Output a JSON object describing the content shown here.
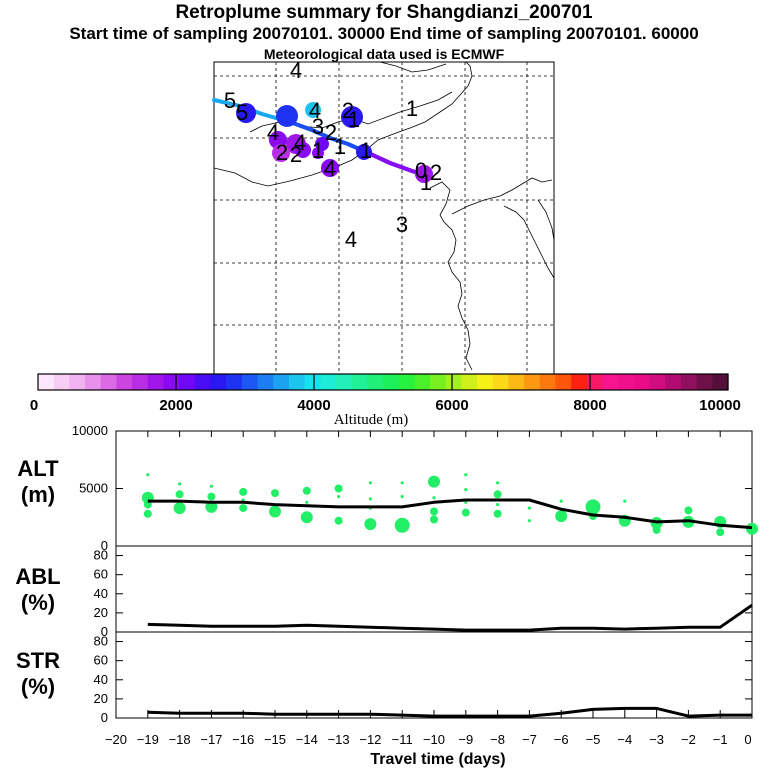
{
  "header": {
    "title": "Retroplume summary for Shangdianzi_200701",
    "subtitle": "Start time of sampling 20070101. 30000     End time of sampling 20070101. 60000",
    "met": "Meteorological data used is ECMWF"
  },
  "map": {
    "numbers": [
      "4",
      "5",
      "4",
      "2",
      "1",
      "1",
      "3",
      "2",
      "1",
      "4",
      "4",
      "5",
      "1",
      "1",
      "4",
      "0",
      "2",
      "1",
      "3",
      "4",
      "2",
      "2"
    ]
  },
  "colorbar": {
    "ticks": [
      "0",
      "2000",
      "4000",
      "6000",
      "8000",
      "10000"
    ],
    "label": "Altitude (m)",
    "colors": [
      "#fde8fb",
      "#f7cdf5",
      "#f0b2f0",
      "#e890ec",
      "#dc6ae6",
      "#cc44e2",
      "#b82ee4",
      "#9f15ea",
      "#8a0af2",
      "#6e08f6",
      "#4a0cf5",
      "#2a18f0",
      "#1e32f2",
      "#1c58f4",
      "#1c7ef2",
      "#1ca2f0",
      "#1cc4ee",
      "#18e0ee",
      "#1cecd8",
      "#22f0b8",
      "#22f098",
      "#20f078",
      "#1cf05a",
      "#28f240",
      "#4af02a",
      "#78f020",
      "#a4f01e",
      "#d0f01c",
      "#f4f018",
      "#fcd818",
      "#fcb816",
      "#fc9812",
      "#fc780e",
      "#fc560c",
      "#fc2010",
      "#f81868",
      "#f8148c",
      "#f0108c",
      "#e80c88",
      "#d00c80",
      "#b00c70",
      "#901060",
      "#701048",
      "#54103a"
    ]
  },
  "chart_data": [
    {
      "type": "line",
      "name": "ALT",
      "ylabel": "ALT\n(m)",
      "ylim": [
        0,
        10000
      ],
      "ytick_labels": [
        "0",
        "5000",
        "10000"
      ],
      "x": [
        0,
        -1,
        -2,
        -3,
        -4,
        -5,
        -6,
        -7,
        -8,
        -9,
        -10,
        -11,
        -12,
        -13,
        -14,
        -15,
        -16,
        -17,
        -18,
        -19
      ],
      "series": [
        {
          "name": "mean altitude",
          "values": [
            1600,
            1800,
            2200,
            2100,
            2500,
            2700,
            3200,
            4000,
            4000,
            4000,
            3800,
            3400,
            3400,
            3400,
            3500,
            3600,
            3800,
            3800,
            3900,
            3900
          ]
        }
      ],
      "scatter": [
        {
          "x": -19,
          "y": 6200,
          "s": 1
        },
        {
          "x": -19,
          "y": 4200,
          "s": 3
        },
        {
          "x": -19,
          "y": 3600,
          "s": 2
        },
        {
          "x": -19,
          "y": 2800,
          "s": 2
        },
        {
          "x": -18,
          "y": 5400,
          "s": 1
        },
        {
          "x": -18,
          "y": 4500,
          "s": 2
        },
        {
          "x": -18,
          "y": 3300,
          "s": 3
        },
        {
          "x": -17,
          "y": 5200,
          "s": 1
        },
        {
          "x": -17,
          "y": 4300,
          "s": 2
        },
        {
          "x": -17,
          "y": 3400,
          "s": 3
        },
        {
          "x": -16,
          "y": 4700,
          "s": 2
        },
        {
          "x": -16,
          "y": 4000,
          "s": 1
        },
        {
          "x": -16,
          "y": 3300,
          "s": 2
        },
        {
          "x": -15,
          "y": 4600,
          "s": 2
        },
        {
          "x": -15,
          "y": 3000,
          "s": 3
        },
        {
          "x": -14,
          "y": 4800,
          "s": 2
        },
        {
          "x": -14,
          "y": 3800,
          "s": 1
        },
        {
          "x": -14,
          "y": 2500,
          "s": 3
        },
        {
          "x": -13,
          "y": 5000,
          "s": 2
        },
        {
          "x": -13,
          "y": 4300,
          "s": 1
        },
        {
          "x": -13,
          "y": 2200,
          "s": 2
        },
        {
          "x": -12,
          "y": 5500,
          "s": 1
        },
        {
          "x": -12,
          "y": 4100,
          "s": 1
        },
        {
          "x": -12,
          "y": 3300,
          "s": 1
        },
        {
          "x": -12,
          "y": 1900,
          "s": 3
        },
        {
          "x": -11,
          "y": 5500,
          "s": 1
        },
        {
          "x": -11,
          "y": 4300,
          "s": 1
        },
        {
          "x": -11,
          "y": 1800,
          "s": 4
        },
        {
          "x": -10,
          "y": 5600,
          "s": 3
        },
        {
          "x": -10,
          "y": 4200,
          "s": 1
        },
        {
          "x": -10,
          "y": 3000,
          "s": 2
        },
        {
          "x": -10,
          "y": 2300,
          "s": 2
        },
        {
          "x": -9,
          "y": 6200,
          "s": 1
        },
        {
          "x": -9,
          "y": 4900,
          "s": 1
        },
        {
          "x": -9,
          "y": 3800,
          "s": 1
        },
        {
          "x": -9,
          "y": 2900,
          "s": 2
        },
        {
          "x": -8,
          "y": 5500,
          "s": 1
        },
        {
          "x": -8,
          "y": 4500,
          "s": 2
        },
        {
          "x": -8,
          "y": 3600,
          "s": 1
        },
        {
          "x": -8,
          "y": 2800,
          "s": 2
        },
        {
          "x": -7,
          "y": 3300,
          "s": 1
        },
        {
          "x": -7,
          "y": 2200,
          "s": 1
        },
        {
          "x": -6,
          "y": 2600,
          "s": 3
        },
        {
          "x": -6,
          "y": 3900,
          "s": 1
        },
        {
          "x": -5,
          "y": 3400,
          "s": 4
        },
        {
          "x": -5,
          "y": 2600,
          "s": 2
        },
        {
          "x": -4,
          "y": 3900,
          "s": 1
        },
        {
          "x": -4,
          "y": 2200,
          "s": 3
        },
        {
          "x": -3,
          "y": 2000,
          "s": 3
        },
        {
          "x": -3,
          "y": 1400,
          "s": 2
        },
        {
          "x": -2,
          "y": 3100,
          "s": 2
        },
        {
          "x": -2,
          "y": 2100,
          "s": 3
        },
        {
          "x": -1,
          "y": 2100,
          "s": 3
        },
        {
          "x": -1,
          "y": 1200,
          "s": 2
        },
        {
          "x": 0,
          "y": 1500,
          "s": 3
        }
      ]
    },
    {
      "type": "line",
      "name": "ABL",
      "ylabel": "ABL\n(%)",
      "ylim": [
        0,
        90
      ],
      "ytick_labels": [
        "0",
        "20",
        "40",
        "60",
        "80"
      ],
      "x": [
        0,
        -1,
        -2,
        -3,
        -4,
        -5,
        -6,
        -7,
        -8,
        -9,
        -10,
        -11,
        -12,
        -13,
        -14,
        -15,
        -16,
        -17,
        -18,
        -19
      ],
      "series": [
        {
          "name": "ABL fraction",
          "values": [
            28,
            5,
            5,
            4,
            3,
            4,
            4,
            2,
            2,
            2,
            3,
            4,
            5,
            6,
            7,
            6,
            6,
            6,
            7,
            8
          ]
        }
      ]
    },
    {
      "type": "line",
      "name": "STR",
      "ylabel": "STR\n(%)",
      "ylim": [
        0,
        90
      ],
      "ytick_labels": [
        "0",
        "20",
        "40",
        "60",
        "80"
      ],
      "x": [
        0,
        -1,
        -2,
        -3,
        -4,
        -5,
        -6,
        -7,
        -8,
        -9,
        -10,
        -11,
        -12,
        -13,
        -14,
        -15,
        -16,
        -17,
        -18,
        -19
      ],
      "series": [
        {
          "name": "stratospheric fraction",
          "values": [
            3,
            3,
            2,
            10,
            10,
            9,
            5,
            2,
            2,
            2,
            2,
            3,
            4,
            4,
            4,
            4,
            5,
            5,
            5,
            6
          ]
        }
      ],
      "xlabel": "Travel time (days)",
      "xlim": [
        -20,
        0
      ],
      "xtick_labels": [
        "−20",
        "−19",
        "−18",
        "−17",
        "−16",
        "−15",
        "−14",
        "−13",
        "−12",
        "−11",
        "−10",
        "−9",
        "−8",
        "−7",
        "−6",
        "−5",
        "−4",
        "−3",
        "−2",
        "−1",
        "0"
      ]
    }
  ]
}
